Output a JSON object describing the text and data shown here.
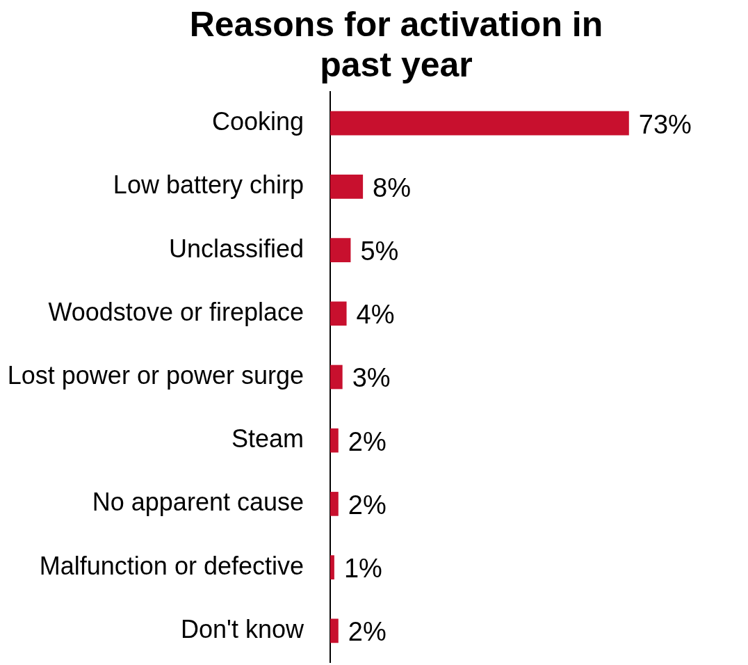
{
  "chart_data": {
    "type": "bar",
    "orientation": "horizontal",
    "title": "Reasons for activation in past year",
    "categories": [
      "Cooking",
      "Low battery chirp",
      "Unclassified",
      "Woodstove or fireplace",
      "Lost power or power surge",
      "Steam",
      "No apparent cause",
      "Malfunction or defective",
      "Don't know"
    ],
    "values": [
      73,
      8,
      5,
      4,
      3,
      2,
      2,
      1,
      2
    ],
    "value_labels": [
      "73%",
      "8%",
      "5%",
      "4%",
      "3%",
      "2%",
      "2%",
      "1%",
      "2%"
    ],
    "color": "#c8102e",
    "grid": false,
    "legend": false,
    "tick_labels": "y"
  }
}
